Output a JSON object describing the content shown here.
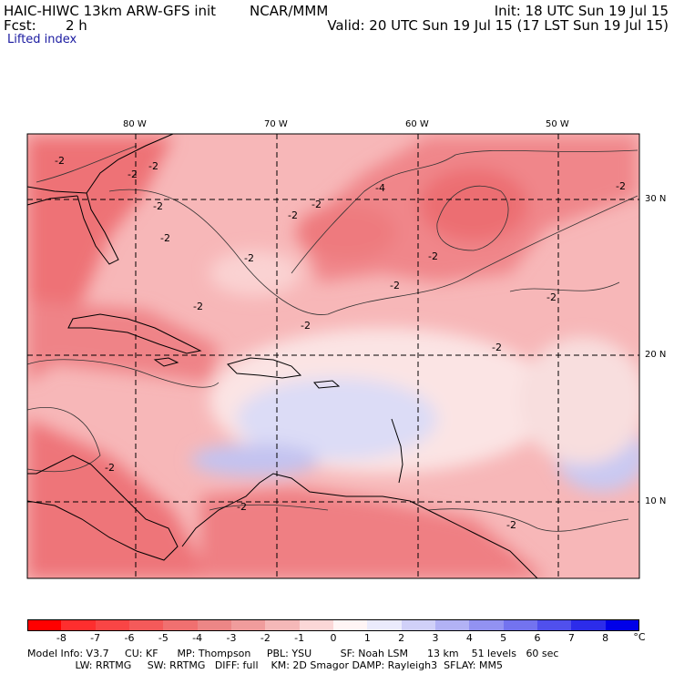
{
  "header": {
    "title": "HAIC-HIWC 13km ARW-GFS init",
    "org": "NCAR/MMM",
    "init": "Init: 18 UTC Sun 19 Jul 15",
    "fcst_label": "Fcst:",
    "fcst_value": "2 h",
    "valid": "Valid: 20 UTC Sun 19 Jul 15 (17 LST Sun 19 Jul 15)",
    "field": "Lifted index"
  },
  "map": {
    "lon_labels": [
      "80 W",
      "70 W",
      "60 W",
      "50 W"
    ],
    "lat_labels": [
      "30 N",
      "20 N",
      "10 N"
    ],
    "contour_labels": [
      "-2",
      "-2",
      "-2",
      "-2",
      "-4",
      "-2",
      "-2",
      "-2",
      "-2",
      "-2",
      "-2",
      "-2",
      "-2",
      "-2",
      "-2",
      "-2",
      "-2",
      "-2",
      "-2"
    ],
    "colors": {
      "neg_strong": "#e83a45",
      "neg_mid": "#f07a7f",
      "neg_light": "#f7b3b5",
      "near_zero": "#fde6e6",
      "pos_light": "#dcdcf8",
      "pos_mid": "#b9b9f0",
      "grid": "#000000",
      "coast": "#000000"
    }
  },
  "legend": {
    "unit": "°C",
    "ticks": [
      "-8",
      "-7",
      "-6",
      "-5",
      "-4",
      "-3",
      "-2",
      "-1",
      "0",
      "1",
      "2",
      "3",
      "4",
      "5",
      "6",
      "7",
      "8"
    ],
    "colors": [
      "#ff0000",
      "#fe2e2e",
      "#f94545",
      "#f45a5a",
      "#f07070",
      "#ec8686",
      "#f09c9c",
      "#f5b8b8",
      "#fbd7d7",
      "#fff5f5",
      "#ebebfc",
      "#d0d0f8",
      "#b2b2f5",
      "#9292f2",
      "#7373ef",
      "#5050ed",
      "#2c2cea",
      "#0000e8"
    ]
  },
  "footer": {
    "line1": "Model Info: V3.7     CU: KF      MP: Thompson     PBL: YSU         SF: Noah LSM      13 km    51 levels   60 sec",
    "line2": "               LW: RRTMG     SW: RRTMG   DIFF: full    KM: 2D Smagor DAMP: Rayleigh3  SFLAY: MM5"
  }
}
